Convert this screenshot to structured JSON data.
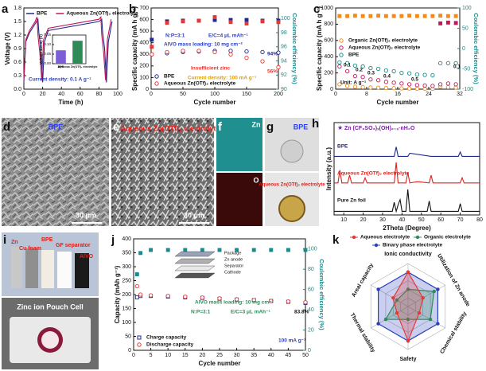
{
  "chart_data": [
    {
      "panel": "a",
      "type": "line",
      "xlabel": "Time (h)",
      "ylabel": "Voltage (V)",
      "xlim": [
        0,
        100
      ],
      "xticks": [
        0,
        20,
        40,
        60,
        80,
        100
      ],
      "ylim": [
        0,
        1.8
      ],
      "yticks": [
        {
          "value": 0,
          "label": "0.0"
        },
        0.3,
        0.6,
        0.9,
        1.2,
        1.5,
        1.8
      ],
      "legend": "top",
      "series": [
        {
          "name": "BPE",
          "color": "#1f2a8c",
          "x": [
            0,
            2,
            6,
            12,
            15,
            16,
            18,
            20,
            22,
            26,
            80,
            83,
            84,
            86,
            88,
            90,
            94
          ],
          "values": [
            0.15,
            1.05,
            1.25,
            1.45,
            1.55,
            1.25,
            0.9,
            0.15,
            1.05,
            1.3,
            1.5,
            1.55,
            1.25,
            0.9,
            0.15,
            1.05,
            1.5
          ]
        },
        {
          "name": "Aqueous Zn(OTf)₂ electrolyte",
          "color": "#c2185b",
          "x": [
            0,
            2,
            6,
            12,
            14,
            15,
            17,
            19,
            21,
            26,
            80,
            82,
            83,
            85,
            87,
            89,
            93
          ],
          "values": [
            0.2,
            1.1,
            1.3,
            1.5,
            1.6,
            1.2,
            0.8,
            0.2,
            1.1,
            1.35,
            1.55,
            1.6,
            1.2,
            0.8,
            0.2,
            1.1,
            1.55
          ]
        }
      ],
      "annotations": [
        "Current density: 0.1 A g⁻¹"
      ]
    },
    {
      "type": "bar",
      "ylabel": "Voltage Decay (V)",
      "categories": [
        "BPE",
        "Aqueous Zn(OTf)₂ electrolyte"
      ],
      "values": [
        0.07,
        0.12
      ],
      "colors": [
        "#7b5fd6",
        "#2e8b57"
      ],
      "ylim": [
        0,
        0.15
      ],
      "yticks": [
        {
          "value": 0,
          "label": "0.00"
        },
        0.05,
        {
          "value": 0.1,
          "label": "0.10"
        },
        0.15
      ]
    },
    {
      "panel": "b",
      "type": "scatter",
      "xlabel": "Cycle number",
      "ylabel": "Specific capacity (mA h g⁻¹)",
      "y2label": "Coulombic efficiency (%)",
      "xlim": [
        0,
        200
      ],
      "xticks": [
        0,
        50,
        100,
        150,
        200
      ],
      "ylim": [
        0,
        700
      ],
      "yticks": [
        0,
        100,
        200,
        300,
        400,
        500,
        600,
        700
      ],
      "y2lim": [
        90,
        101.5
      ],
      "y2ticks": [
        90,
        92,
        94,
        96,
        98,
        100
      ],
      "legend": "bottom-left",
      "series": [
        {
          "name": "BPE",
          "color": "#1f2a8c",
          "marker": "circle",
          "x": [
            1,
            25,
            50,
            75,
            100,
            125,
            150,
            175,
            200
          ],
          "values": [
            300,
            310,
            320,
            325,
            330,
            330,
            325,
            320,
            315
          ]
        },
        {
          "name": "Aqueous Zn(OTf)₂ electrolyte",
          "color": "#e53935",
          "marker": "circle",
          "x": [
            1,
            25,
            50,
            75,
            100,
            125,
            150,
            175,
            200
          ],
          "values": [
            300,
            320,
            330,
            330,
            320,
            300,
            270,
            240,
            190
          ]
        },
        {
          "color": "#1f2a8c",
          "marker": "square",
          "axis": "y2",
          "x": [
            1,
            25,
            50,
            75,
            100,
            125,
            150,
            175,
            200
          ],
          "values": [
            97,
            99.6,
            99.7,
            99.7,
            99.8,
            99.8,
            99.8,
            99.7,
            99.7
          ]
        },
        {
          "color": "#e53935",
          "marker": "square",
          "axis": "y2",
          "x": [
            1,
            25,
            50,
            75,
            100,
            125,
            150,
            175,
            200
          ],
          "values": [
            96,
            99.4,
            99.6,
            99.7,
            100.2,
            99.5,
            99.3,
            99.6,
            99.5
          ]
        }
      ],
      "annotations": [
        "N:P=3:1",
        "E/C=4 μL mAh⁻¹",
        "AlVO mass loading: 10 mg cm⁻²",
        "Insufficient zinc",
        "Current density: 100 mA g⁻¹",
        "94%",
        "56%"
      ]
    },
    {
      "panel": "c",
      "type": "scatter",
      "xlabel": "Cycle number",
      "ylabel": "Specific capacity (mA h g⁻¹)",
      "y2label": "Coulombic efficiency (%)",
      "xlim": [
        0,
        32
      ],
      "xticks": [
        0,
        8,
        16,
        24,
        32
      ],
      "ylim": [
        0,
        1000
      ],
      "yticks": [
        0,
        200,
        400,
        600,
        800,
        1000
      ],
      "y2lim": [
        -100,
        100
      ],
      "y2ticks": [
        -100,
        -50,
        0,
        50,
        100
      ],
      "legend": "center-left",
      "series": [
        {
          "name": "Organic Zn(OTf)₂ electrolyte",
          "color": "#f08c1a",
          "marker": "circle",
          "x": [
            1,
            3,
            5,
            7,
            9,
            11,
            13,
            15,
            17,
            19,
            21,
            23,
            25,
            27,
            29,
            31
          ],
          "values": [
            60,
            40,
            30,
            25,
            20,
            18,
            15,
            12,
            10,
            8,
            6,
            5,
            5,
            30,
            25,
            20
          ]
        },
        {
          "name": "Aqueous Zn(OTf)₂ electrolyte",
          "color": "#c2185b",
          "marker": "circle",
          "x": [
            1,
            3,
            5,
            7,
            9,
            11,
            13,
            15,
            17,
            19,
            21,
            23,
            25,
            27,
            29,
            31
          ],
          "values": [
            280,
            220,
            160,
            150,
            120,
            110,
            90,
            80,
            70,
            60,
            50,
            45,
            40,
            60,
            70,
            60
          ]
        },
        {
          "name": "BPE",
          "color": "#1a8a8a",
          "marker": "circle",
          "x": [
            1,
            3,
            5,
            7,
            9,
            11,
            13,
            15,
            17,
            19,
            21,
            23,
            25,
            27,
            29,
            31
          ],
          "values": [
            330,
            320,
            290,
            280,
            260,
            250,
            230,
            220,
            200,
            195,
            180,
            175,
            170,
            320,
            320,
            320
          ]
        },
        {
          "color": "#f08c1a",
          "marker": "square",
          "axis": "y2",
          "x": [
            1,
            3,
            5,
            7,
            9,
            11,
            13,
            15,
            17,
            19,
            21,
            23,
            25,
            27,
            29,
            31
          ],
          "values": [
            80,
            80,
            81,
            80,
            80,
            81,
            80,
            80,
            80,
            81,
            80,
            80,
            80,
            81,
            80,
            80
          ]
        },
        {
          "color": "#c2185b",
          "marker": "square",
          "axis": "y2",
          "x": [
            27,
            29,
            31
          ],
          "values": [
            62,
            64,
            63
          ]
        }
      ],
      "rate_labels": [
        0.1,
        0.2,
        0.3,
        0.4,
        0.5,
        0.1
      ],
      "annotations": [
        "Unit: A g⁻¹"
      ]
    },
    {
      "panel": "h",
      "type": "line",
      "title": "Zn (CF₃SO₃)ₓ(OH)₂₋ₓ·nH₂O",
      "xlabel": "2Theta (Degree)",
      "ylabel": "Intensity (a.u.)",
      "xlim": [
        5,
        80
      ],
      "xticks": [
        10,
        20,
        30,
        40,
        50,
        60,
        70,
        80
      ],
      "ylim": [
        0,
        100
      ],
      "stacked_traces": true,
      "series": [
        {
          "name": "BPE",
          "color": "#1f2a8c",
          "x": [
            5,
            9,
            10,
            11,
            20,
            30,
            35,
            36,
            37,
            38,
            42,
            43,
            44,
            55,
            69,
            70,
            71,
            80
          ],
          "values": [
            8,
            8,
            8,
            8,
            8,
            8,
            8,
            8,
            45,
            8,
            8,
            8,
            20,
            8,
            8,
            25,
            8,
            8
          ]
        },
        {
          "name": "Aqueous Zn(OTf)₂ electrolyte",
          "color": "#e0201b",
          "x": [
            5,
            7,
            8,
            9,
            12,
            13,
            14,
            20,
            21,
            22,
            30,
            36,
            37,
            38,
            42,
            43,
            44,
            48,
            54,
            55,
            56,
            70,
            71,
            72,
            80
          ],
          "values": [
            10,
            10,
            60,
            10,
            10,
            40,
            10,
            10,
            30,
            10,
            10,
            10,
            90,
            10,
            10,
            50,
            10,
            15,
            10,
            40,
            10,
            10,
            30,
            10,
            10
          ]
        },
        {
          "name": "Pure Zn foil",
          "color": "#111111",
          "x": [
            5,
            30,
            35,
            36,
            37,
            38,
            39,
            40,
            42,
            43,
            44,
            53,
            54,
            55,
            69,
            70,
            71,
            80
          ],
          "values": [
            5,
            5,
            5,
            40,
            5,
            30,
            50,
            5,
            5,
            90,
            5,
            5,
            45,
            5,
            5,
            35,
            5,
            5
          ]
        }
      ]
    },
    {
      "panel": "j",
      "type": "scatter",
      "xlabel": "Cycle number",
      "ylabel": "Capacity (mAh g⁻¹)",
      "y2label": "Coulombic efficiency (%)",
      "xlim": [
        0,
        50
      ],
      "xticks": [
        0,
        5,
        10,
        15,
        20,
        25,
        30,
        35,
        40,
        45,
        50
      ],
      "ylim": [
        0,
        400
      ],
      "yticks": [
        0,
        50,
        100,
        150,
        200,
        250,
        300,
        350,
        400
      ],
      "y2lim": [
        0,
        110
      ],
      "y2ticks": [
        0,
        20,
        40,
        60,
        80,
        100
      ],
      "legend": "bottom-left",
      "series": [
        {
          "name": "Charge capacity",
          "color": "#1f2a8c",
          "marker": "square",
          "x": [
            1,
            2,
            5,
            10,
            15,
            20,
            25,
            30,
            35,
            40,
            45,
            50
          ],
          "values": [
            190,
            195,
            195,
            193,
            190,
            188,
            185,
            182,
            180,
            177,
            174,
            170
          ]
        },
        {
          "name": "Discharge capacity",
          "color": "#e53935",
          "marker": "circle",
          "x": [
            1,
            2,
            5,
            10,
            15,
            20,
            25,
            30,
            35,
            40,
            45,
            50
          ],
          "values": [
            230,
            200,
            197,
            195,
            192,
            189,
            186,
            183,
            180,
            177,
            175,
            172
          ]
        },
        {
          "color": "#1a8a8a",
          "marker": "square",
          "axis": "y2",
          "x": [
            1,
            2,
            5,
            10,
            15,
            20,
            25,
            30,
            35,
            40,
            45,
            50
          ],
          "values": [
            75,
            96,
            99,
            99,
            99,
            99,
            99,
            99,
            99,
            99,
            99,
            99
          ]
        }
      ],
      "annotations": [
        "AlVO mass loading: 10 mg cm⁻²",
        "N:P=3:1",
        "E/C=3 μL mAh⁻¹",
        "83.8%",
        "100 mA g⁻¹"
      ],
      "inset_labels": [
        "Package",
        "Zn anode",
        "Separator",
        "Cathode"
      ]
    },
    {
      "panel": "k",
      "type": "radar",
      "rlim": [
        0,
        5
      ],
      "legend": "top",
      "axes": [
        "Ionic conductivity",
        "Utilization of Zn anode",
        "Chemical stability",
        "Safety",
        "Thermal stability",
        "Areal capacity"
      ],
      "series": [
        {
          "name": "Aqueous electrolyte",
          "color": "#e53935",
          "values": [
            4,
            2,
            1.5,
            4,
            1.5,
            2
          ]
        },
        {
          "name": "Organic electrolyte",
          "color": "#2e8b57",
          "values": [
            2,
            3.5,
            3,
            1.5,
            3,
            1.5
          ]
        },
        {
          "name": "Binary phase electrolyte",
          "color": "#2a3fbf",
          "values": [
            4,
            4,
            4,
            4,
            4,
            4
          ]
        }
      ]
    }
  ],
  "images": [
    {
      "panel": "d",
      "label": "BPE",
      "scale_bar": "30 μm"
    },
    {
      "panel": "e",
      "label": "Aqueous Zn(OTf)₂ electrolyte",
      "scale_bar": "30 μm"
    },
    {
      "panel": "f",
      "labels": [
        "Zn",
        "O"
      ]
    },
    {
      "panel": "g",
      "labels": [
        "BPE",
        "Aqueous Zn(OTf)₂ electrolyte"
      ]
    },
    {
      "panel": "i",
      "labels": [
        "Zn",
        "Cu foam",
        "BPE",
        "GF separator",
        "AlVO"
      ],
      "caption": "Zinc ion Pouch Cell"
    }
  ]
}
